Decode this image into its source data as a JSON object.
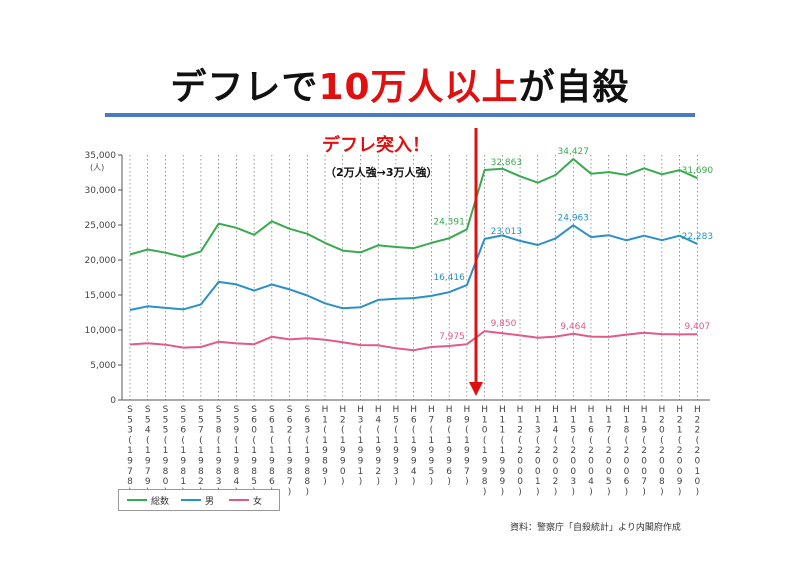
{
  "slide": {
    "title_pre": "デフレで",
    "title_highlight": "10万人以上",
    "title_post": "が自殺",
    "annotation_title": "デフレ突入！",
    "annotation_sub": "（2万人強→3万人強）",
    "source": "資料：警察庁「自殺統計」より内閣府作成"
  },
  "colors": {
    "total": "#3aaa50",
    "male": "#2b90c8",
    "female": "#e05b85",
    "accent": "#e01010",
    "rule": "#4a7ac0"
  },
  "chart_data": {
    "type": "line",
    "ylabel": "(人)",
    "ylim": [
      0,
      35000
    ],
    "yticks": [
      "0",
      "5,000",
      "10,000",
      "15,000",
      "20,000",
      "25,000",
      "30,000",
      "35,000"
    ],
    "ytick_values": [
      0,
      5000,
      10000,
      15000,
      20000,
      25000,
      30000,
      35000
    ],
    "grid": "vertical dotted",
    "legend_position": "bottom-left",
    "categories": [
      [
        "S53",
        "(1978)"
      ],
      [
        "S54",
        "(1979)"
      ],
      [
        "S55",
        "(1980)"
      ],
      [
        "S56",
        "(1981)"
      ],
      [
        "S57",
        "(1982)"
      ],
      [
        "S58",
        "(1983)"
      ],
      [
        "S59",
        "(1984)"
      ],
      [
        "S60",
        "(1985)"
      ],
      [
        "S61",
        "(1986)"
      ],
      [
        "S62",
        "(1987)"
      ],
      [
        "S63",
        "(1988)"
      ],
      [
        "H1",
        "(1989)"
      ],
      [
        "H2",
        "(1990)"
      ],
      [
        "H3",
        "(1991)"
      ],
      [
        "H4",
        "(1992)"
      ],
      [
        "H5",
        "(1993)"
      ],
      [
        "H6",
        "(1994)"
      ],
      [
        "H7",
        "(1995)"
      ],
      [
        "H8",
        "(1996)"
      ],
      [
        "H9",
        "(1997)"
      ],
      [
        "H10",
        "(1998)"
      ],
      [
        "H11",
        "(1999)"
      ],
      [
        "H12",
        "(2000)"
      ],
      [
        "H13",
        "(2001)"
      ],
      [
        "H14",
        "(2002)"
      ],
      [
        "H15",
        "(2003)"
      ],
      [
        "H16",
        "(2004)"
      ],
      [
        "H17",
        "(2005)"
      ],
      [
        "H18",
        "(2006)"
      ],
      [
        "H19",
        "(2007)"
      ],
      [
        "H20",
        "(2008)"
      ],
      [
        "H21",
        "(2009)"
      ],
      [
        "H22",
        "(2010)"
      ]
    ],
    "series": [
      {
        "name": "総数",
        "key": "total",
        "values": [
          20788,
          21503,
          21048,
          20434,
          21228,
          25202,
          24596,
          23599,
          25524,
          24460,
          23742,
          22436,
          21346,
          21084,
          22104,
          21851,
          21679,
          22445,
          23104,
          24391,
          32863,
          33048,
          31957,
          31042,
          32143,
          34427,
          32325,
          32552,
          32155,
          33093,
          32249,
          32845,
          31690
        ]
      },
      {
        "name": "男",
        "key": "male",
        "values": [
          12859,
          13386,
          13155,
          12942,
          13654,
          16876,
          16508,
          15624,
          16497,
          15802,
          14934,
          13818,
          13102,
          13242,
          14296,
          14468,
          14560,
          14874,
          15393,
          16416,
          23013,
          23512,
          22727,
          22144,
          23080,
          24963,
          23272,
          23540,
          22813,
          23478,
          22831,
          23472,
          22283
        ]
      },
      {
        "name": "女",
        "key": "female",
        "values": [
          7929,
          8117,
          7893,
          7492,
          7574,
          8326,
          8088,
          7975,
          9027,
          8658,
          8808,
          8618,
          8244,
          7842,
          7808,
          7383,
          7119,
          7571,
          7711,
          7975,
          9850,
          9536,
          9230,
          8898,
          9063,
          9464,
          9053,
          9012,
          9342,
          9615,
          9418,
          9373,
          9407
        ]
      }
    ],
    "data_labels": [
      {
        "series": "total",
        "index": 19,
        "text": "24,391"
      },
      {
        "series": "total",
        "index": 20,
        "text": "32,863"
      },
      {
        "series": "total",
        "index": 25,
        "text": "34,427"
      },
      {
        "series": "total",
        "index": 32,
        "text": "31,690"
      },
      {
        "series": "male",
        "index": 19,
        "text": "16,416"
      },
      {
        "series": "male",
        "index": 20,
        "text": "23,013"
      },
      {
        "series": "male",
        "index": 25,
        "text": "24,963"
      },
      {
        "series": "male",
        "index": 32,
        "text": "22,283"
      },
      {
        "series": "female",
        "index": 19,
        "text": "7,975"
      },
      {
        "series": "female",
        "index": 20,
        "text": "9,850"
      },
      {
        "series": "female",
        "index": 25,
        "text": "9,464"
      },
      {
        "series": "female",
        "index": 32,
        "text": "9,407"
      }
    ]
  }
}
